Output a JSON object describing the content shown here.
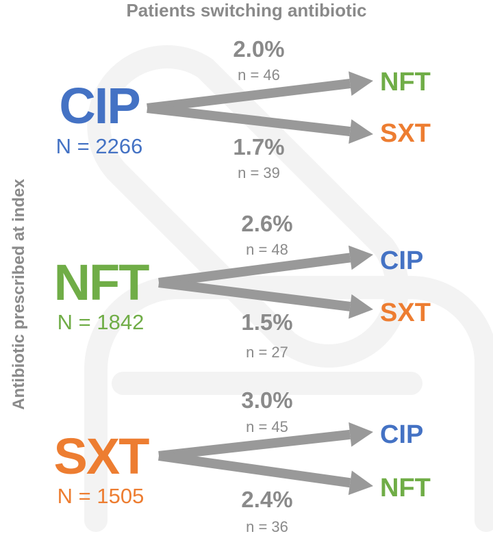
{
  "title": "Patients switching antibiotic",
  "y_axis_label": "Antibiotic prescribed at index",
  "colors": {
    "CIP": "#4472c4",
    "NFT": "#70ad47",
    "SXT": "#ed7d31",
    "text_gray": "#8a8a8a",
    "arrow_gray": "#999999",
    "watermark": "#f2f2f2"
  },
  "groups": [
    {
      "index_drug": "CIP",
      "index_count": "N = 2266",
      "switches": [
        {
          "to": "NFT",
          "percent": "2.0%",
          "n": "n = 46"
        },
        {
          "to": "SXT",
          "percent": "1.7%",
          "n": "n = 39"
        }
      ]
    },
    {
      "index_drug": "NFT",
      "index_count": "N = 1842",
      "switches": [
        {
          "to": "CIP",
          "percent": "2.6%",
          "n": "n = 48"
        },
        {
          "to": "SXT",
          "percent": "1.5%",
          "n": "n = 27"
        }
      ]
    },
    {
      "index_drug": "SXT",
      "index_count": "N = 1505",
      "switches": [
        {
          "to": "CIP",
          "percent": "3.0%",
          "n": "n = 45"
        },
        {
          "to": "NFT",
          "percent": "2.4%",
          "n": "n = 36"
        }
      ]
    }
  ]
}
